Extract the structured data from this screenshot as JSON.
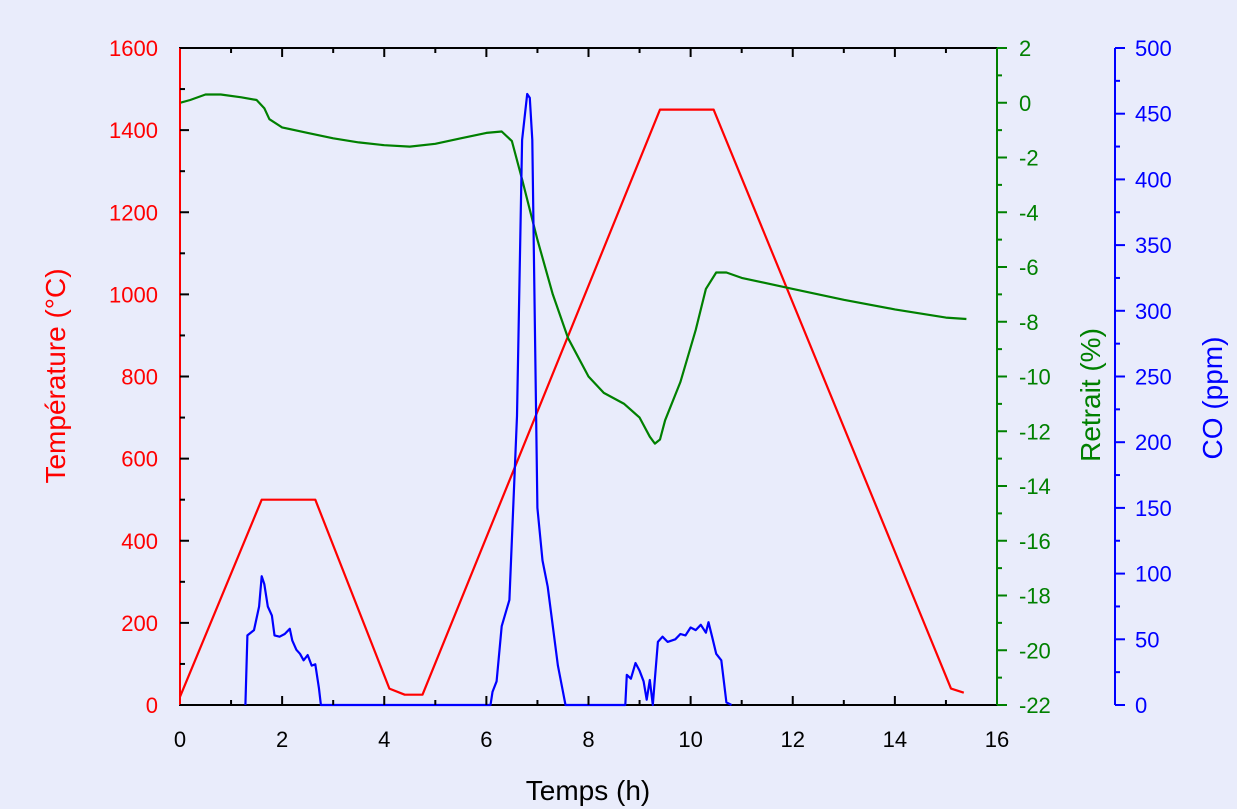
{
  "chart_data": {
    "type": "line",
    "xlabel": "Temps (h)",
    "xlim": [
      0,
      16
    ],
    "xticks": [
      0,
      2,
      4,
      6,
      8,
      10,
      12,
      14,
      16
    ],
    "axes": {
      "temperature": {
        "label": "Température (°C)",
        "color": "#ff0000",
        "lim": [
          0,
          1600
        ],
        "ticks": [
          0,
          200,
          400,
          600,
          800,
          1000,
          1200,
          1400,
          1600
        ]
      },
      "retrait": {
        "label": "Retrait (%)",
        "color": "#008000",
        "lim": [
          -22,
          2
        ],
        "ticks": [
          -22,
          -20,
          -18,
          -16,
          -14,
          -12,
          -10,
          -8,
          -6,
          -4,
          -2,
          0,
          2
        ]
      },
      "co": {
        "label": "CO (ppm)",
        "color": "#0000ff",
        "lim": [
          0,
          500
        ],
        "ticks": [
          0,
          50,
          100,
          150,
          200,
          250,
          300,
          350,
          400,
          450,
          500
        ]
      }
    },
    "series": [
      {
        "axis": "temperature",
        "color": "#ff0000",
        "points": [
          [
            0,
            20
          ],
          [
            1.6,
            500
          ],
          [
            2.65,
            500
          ],
          [
            4.1,
            40
          ],
          [
            4.4,
            25
          ],
          [
            4.75,
            25
          ],
          [
            9.4,
            1450
          ],
          [
            10.45,
            1450
          ],
          [
            15.1,
            40
          ],
          [
            15.35,
            30
          ]
        ]
      },
      {
        "axis": "retrait",
        "color": "#008000",
        "points": [
          [
            0,
            0
          ],
          [
            0.2,
            0.1
          ],
          [
            0.5,
            0.3
          ],
          [
            0.8,
            0.3
          ],
          [
            1.2,
            0.2
          ],
          [
            1.5,
            0.1
          ],
          [
            1.65,
            -0.2
          ],
          [
            1.75,
            -0.6
          ],
          [
            2,
            -0.9
          ],
          [
            2.5,
            -1.1
          ],
          [
            3,
            -1.3
          ],
          [
            3.5,
            -1.45
          ],
          [
            4,
            -1.55
          ],
          [
            4.5,
            -1.6
          ],
          [
            5,
            -1.5
          ],
          [
            5.5,
            -1.3
          ],
          [
            6,
            -1.1
          ],
          [
            6.3,
            -1.05
          ],
          [
            6.5,
            -1.4
          ],
          [
            6.7,
            -2.8
          ],
          [
            7,
            -5
          ],
          [
            7.3,
            -7
          ],
          [
            7.6,
            -8.6
          ],
          [
            8,
            -10
          ],
          [
            8.3,
            -10.6
          ],
          [
            8.7,
            -11
          ],
          [
            9,
            -11.5
          ],
          [
            9.2,
            -12.2
          ],
          [
            9.3,
            -12.45
          ],
          [
            9.4,
            -12.3
          ],
          [
            9.5,
            -11.6
          ],
          [
            9.8,
            -10.2
          ],
          [
            10.1,
            -8.3
          ],
          [
            10.3,
            -6.8
          ],
          [
            10.5,
            -6.2
          ],
          [
            10.7,
            -6.2
          ],
          [
            11,
            -6.4
          ],
          [
            12,
            -6.8
          ],
          [
            13,
            -7.2
          ],
          [
            14,
            -7.55
          ],
          [
            15,
            -7.85
          ],
          [
            15.4,
            -7.9
          ]
        ]
      },
      {
        "axis": "co",
        "color": "#0000ff",
        "points": [
          [
            1.28,
            0
          ],
          [
            1.32,
            53
          ],
          [
            1.45,
            57
          ],
          [
            1.55,
            75
          ],
          [
            1.6,
            98
          ],
          [
            1.65,
            92
          ],
          [
            1.72,
            75
          ],
          [
            1.8,
            68
          ],
          [
            1.85,
            53
          ],
          [
            1.95,
            52
          ],
          [
            2.05,
            54
          ],
          [
            2.15,
            58
          ],
          [
            2.2,
            49
          ],
          [
            2.28,
            42
          ],
          [
            2.35,
            39
          ],
          [
            2.42,
            34
          ],
          [
            2.5,
            38
          ],
          [
            2.58,
            30
          ],
          [
            2.65,
            31
          ],
          [
            2.72,
            13
          ],
          [
            2.76,
            0
          ],
          [
            6.08,
            0
          ],
          [
            6.12,
            10
          ],
          [
            6.2,
            18
          ],
          [
            6.3,
            60
          ],
          [
            6.45,
            80
          ],
          [
            6.6,
            220
          ],
          [
            6.7,
            430
          ],
          [
            6.8,
            465
          ],
          [
            6.85,
            462
          ],
          [
            6.9,
            430
          ],
          [
            7.0,
            150
          ],
          [
            7.1,
            110
          ],
          [
            7.2,
            90
          ],
          [
            7.3,
            60
          ],
          [
            7.4,
            30
          ],
          [
            7.5,
            10
          ],
          [
            7.55,
            0
          ],
          [
            8.72,
            0
          ],
          [
            8.75,
            23
          ],
          [
            8.83,
            20
          ],
          [
            8.92,
            32
          ],
          [
            9.0,
            26
          ],
          [
            9.08,
            18
          ],
          [
            9.14,
            4
          ],
          [
            9.2,
            19
          ],
          [
            9.26,
            0
          ],
          [
            9.3,
            20
          ],
          [
            9.36,
            48
          ],
          [
            9.45,
            52
          ],
          [
            9.55,
            48
          ],
          [
            9.7,
            50
          ],
          [
            9.8,
            54
          ],
          [
            9.9,
            53
          ],
          [
            10.0,
            59
          ],
          [
            10.1,
            57
          ],
          [
            10.2,
            61
          ],
          [
            10.3,
            55
          ],
          [
            10.35,
            63
          ],
          [
            10.42,
            52
          ],
          [
            10.5,
            39
          ],
          [
            10.6,
            34
          ],
          [
            10.7,
            2
          ],
          [
            10.8,
            0
          ]
        ]
      }
    ]
  }
}
